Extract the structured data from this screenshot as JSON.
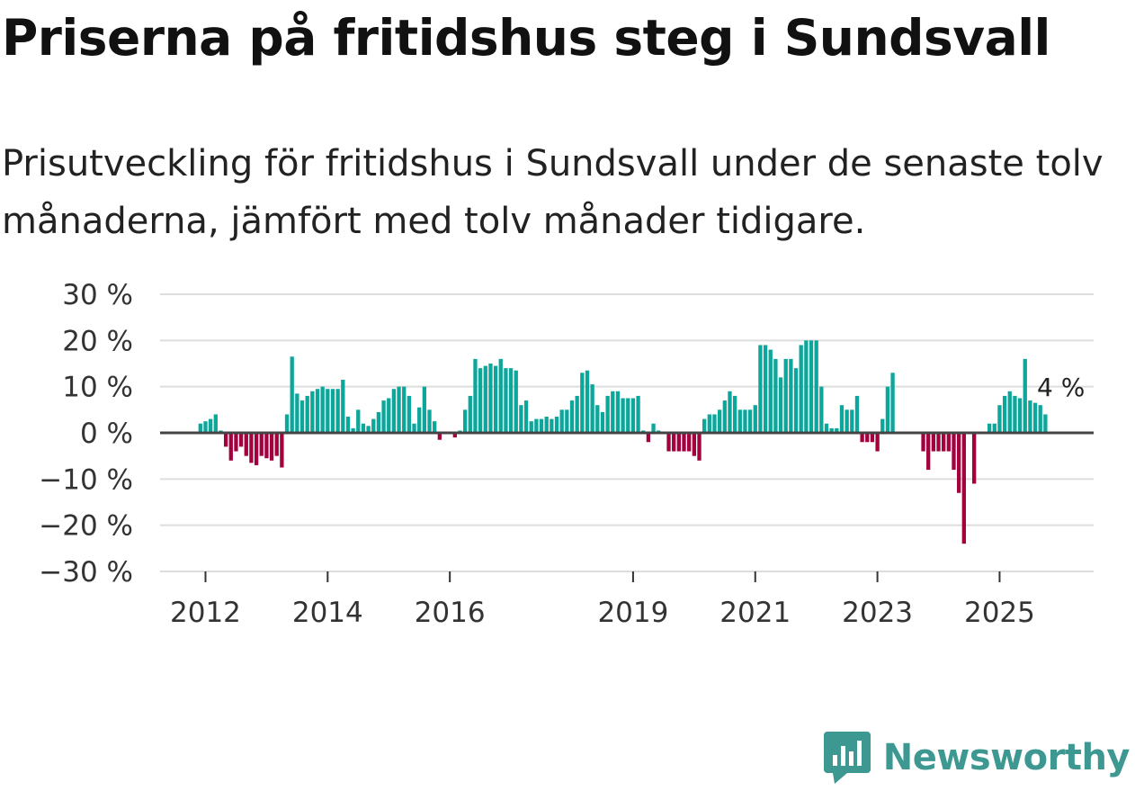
{
  "title": "Priserna på fritidshus steg i Sundsvall",
  "subtitle": "Prisutveckling för fritidshus i Sundsvall under de senaste tolv månaderna, jämfört med tolv månader tidigare.",
  "brand": {
    "name": "Newsworthy",
    "icon": "newsworthy-logo-icon",
    "color": "#3d9891"
  },
  "colors": {
    "positive": "#0ca69a",
    "negative": "#a3003e",
    "grid": "#dddddd",
    "zero": "#444444"
  },
  "chart_data": {
    "type": "bar",
    "title": "Priserna på fritidshus steg i Sundsvall",
    "xlabel": "",
    "ylabel": "",
    "ylim": [
      -30,
      30
    ],
    "y_ticks": [
      {
        "value": 30,
        "label": "30 %"
      },
      {
        "value": 20,
        "label": "20 %"
      },
      {
        "value": 10,
        "label": "10 %"
      },
      {
        "value": 0,
        "label": "0 %"
      },
      {
        "value": -10,
        "label": "−10 %"
      },
      {
        "value": -20,
        "label": "−20 %"
      },
      {
        "value": -30,
        "label": "−30 %"
      }
    ],
    "x_ticks": [
      {
        "label": "2012",
        "index": 3
      },
      {
        "label": "2014",
        "index": 27
      },
      {
        "label": "2016",
        "index": 51
      },
      {
        "label": "2019",
        "index": 87
      },
      {
        "label": "2021",
        "index": 111
      },
      {
        "label": "2023",
        "index": 135
      },
      {
        "label": "2025",
        "index": 159
      }
    ],
    "start": "2011-10",
    "frequency": "monthly",
    "annotation": {
      "label": "4 %",
      "index": 166,
      "value": 4
    },
    "values": [
      null,
      null,
      2,
      2.5,
      3,
      4,
      0.5,
      -3,
      -6,
      -4,
      -3,
      -5,
      -6.5,
      -7,
      -5,
      -5.5,
      -6,
      -5,
      -7.5,
      4,
      16.5,
      8.5,
      7,
      8,
      9,
      9.5,
      10,
      9.5,
      9.5,
      9.5,
      11.5,
      3.5,
      1,
      5,
      2,
      1.5,
      3,
      4.5,
      7,
      7.5,
      9.5,
      10,
      10,
      8,
      2,
      5.5,
      10,
      5,
      2.5,
      -1.5,
      0,
      0,
      -1,
      0.5,
      5,
      8,
      16,
      14,
      14.5,
      15,
      14.5,
      16,
      14,
      14,
      13.5,
      6,
      7,
      2.5,
      3,
      3,
      3.5,
      3,
      3.5,
      5,
      5,
      7,
      8,
      13,
      13.5,
      10.5,
      6,
      4.5,
      8,
      9,
      9,
      7.5,
      7.5,
      7.5,
      8,
      0.5,
      -2,
      2,
      0.5,
      0,
      -4,
      -4,
      -4,
      -4,
      -4,
      -5,
      -6,
      3,
      4,
      4,
      5,
      7,
      9,
      8,
      5,
      5,
      5,
      6,
      19,
      19,
      18,
      16,
      12,
      16,
      16,
      14,
      19,
      20,
      20,
      20,
      10,
      2,
      1,
      1,
      6,
      5,
      5,
      8,
      -2,
      -2,
      -2,
      -4,
      3,
      10,
      13,
      null,
      null,
      null,
      null,
      null,
      -4,
      -8,
      -4,
      -4,
      -4,
      -4,
      -8,
      -13,
      -24,
      null,
      -11,
      null,
      null,
      2,
      2,
      6,
      8,
      9,
      8,
      7.5,
      16,
      7,
      6.5,
      6,
      4
    ]
  }
}
